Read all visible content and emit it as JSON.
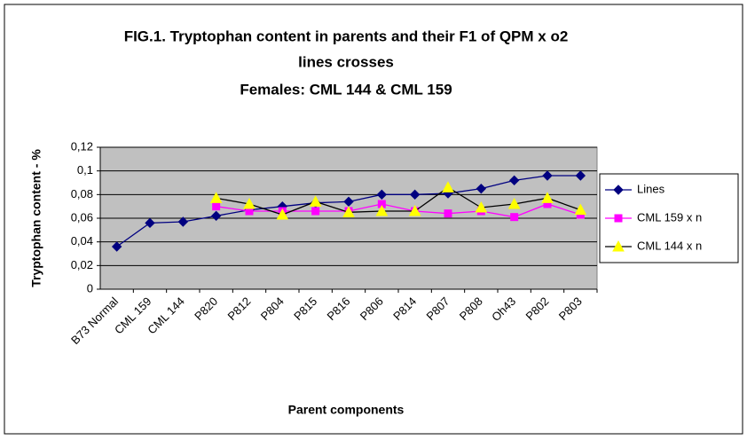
{
  "chart_data": {
    "type": "line",
    "title": "FIG.1. Tryptophan content in parents and their F1 of QPM x o2",
    "title_line2": "lines crosses",
    "subtitle": "Females: CML 144 & CML 159",
    "y_label": "Tryptophan content - %",
    "x_label": "Parent components",
    "categories": [
      "B73 Normal",
      "CML 159",
      "CML 144",
      "P820",
      "P812",
      "P804",
      "P815",
      "P816",
      "P806",
      "P814",
      "P807",
      "P808",
      "Oh43",
      "P802",
      "P803"
    ],
    "series": [
      {
        "name": "Lines",
        "color": "#000080",
        "marker_color": "#000080",
        "marker": "diamond",
        "values": [
          0.036,
          0.056,
          0.057,
          0.062,
          0.067,
          0.07,
          0.073,
          0.074,
          0.08,
          0.08,
          0.081,
          0.085,
          0.092,
          0.096,
          0.096
        ]
      },
      {
        "name": "CML 159 x n",
        "color": "#ff00ff",
        "marker_color": "#ff00ff",
        "marker": "square",
        "values": [
          null,
          null,
          null,
          0.07,
          0.066,
          0.066,
          0.066,
          0.066,
          0.072,
          0.066,
          0.064,
          0.066,
          0.061,
          0.072,
          0.063
        ]
      },
      {
        "name": "CML 144 x n",
        "color": "#000000",
        "marker_color": "#ffff00",
        "marker": "triangle",
        "values": [
          null,
          null,
          null,
          0.077,
          0.072,
          0.063,
          0.074,
          0.065,
          0.066,
          0.066,
          0.086,
          0.069,
          0.072,
          0.077,
          0.067
        ]
      }
    ],
    "ylim": [
      0,
      0.12
    ],
    "yticks": [
      0,
      {
        "value": 0.02,
        "label": "0,02"
      },
      {
        "value": 0.04,
        "label": "0,04"
      },
      {
        "value": 0.06,
        "label": "0,06"
      },
      {
        "value": 0.08,
        "label": "0,08"
      },
      {
        "value": 0.1,
        "label": "0,1"
      },
      {
        "value": 0.12,
        "label": "0,12"
      }
    ],
    "grid": true,
    "plot_background": "#c0c0c0",
    "legend": "right"
  }
}
